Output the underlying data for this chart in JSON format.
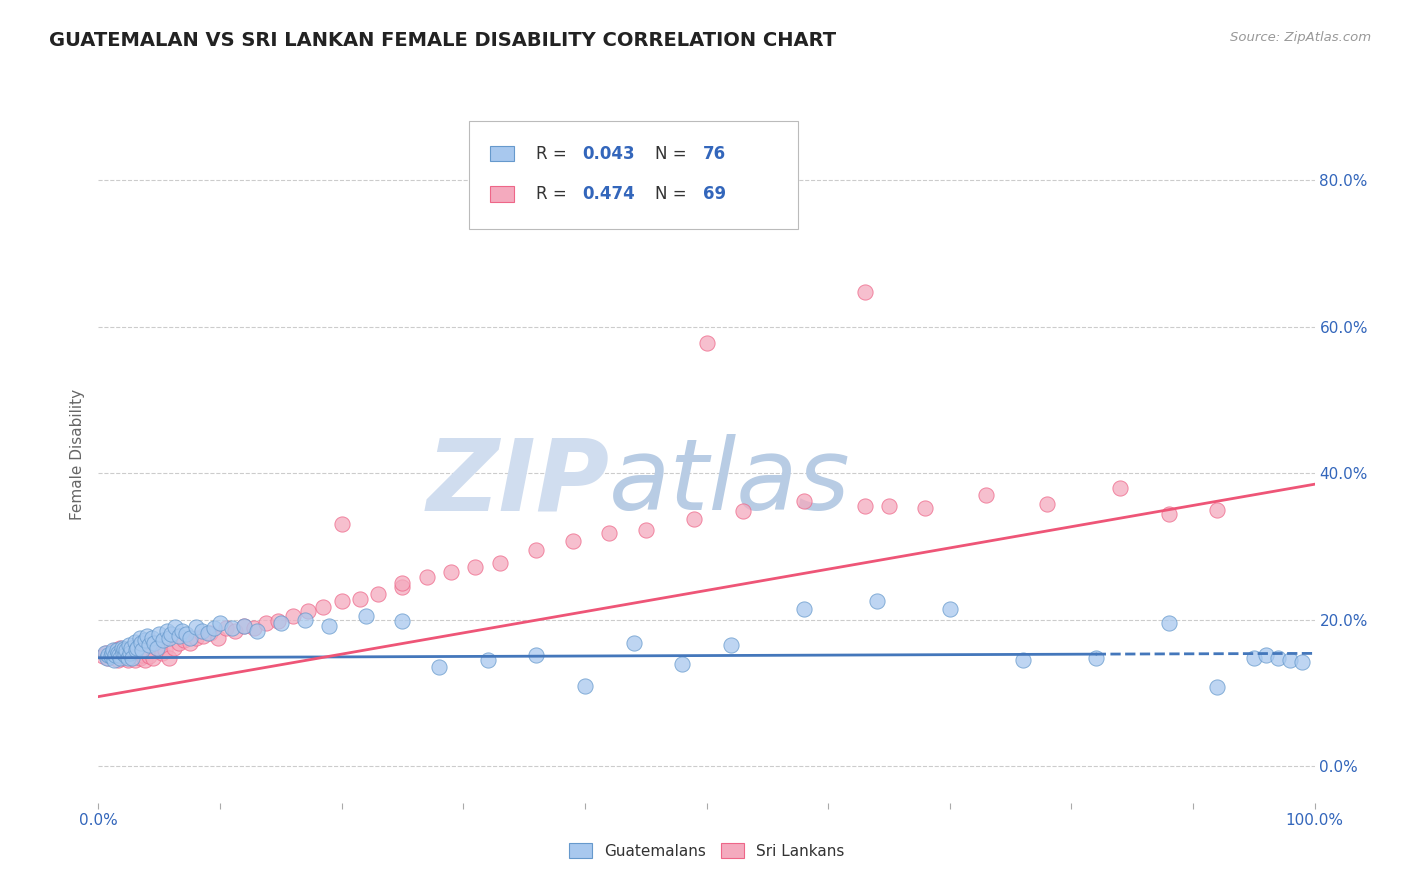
{
  "title": "GUATEMALAN VS SRI LANKAN FEMALE DISABILITY CORRELATION CHART",
  "source_text": "Source: ZipAtlas.com",
  "ylabel": "Female Disability",
  "xlim": [
    0.0,
    1.0
  ],
  "ylim": [
    -0.05,
    0.9
  ],
  "x_ticks": [
    0.0,
    0.1,
    0.2,
    0.3,
    0.4,
    0.5,
    0.6,
    0.7,
    0.8,
    0.9,
    1.0
  ],
  "x_tick_labels": [
    "0.0%",
    "",
    "",
    "",
    "",
    "",
    "",
    "",
    "",
    "",
    "100.0%"
  ],
  "y_tick_labels_right": [
    "0.0%",
    "20.0%",
    "40.0%",
    "60.0%",
    "80.0%"
  ],
  "y_ticks_right": [
    0.0,
    0.2,
    0.4,
    0.6,
    0.8
  ],
  "guatemalan_R": 0.043,
  "guatemalan_N": 76,
  "srilanka_R": 0.474,
  "srilanka_N": 69,
  "guatemalan_color": "#A8C8EE",
  "srilanka_color": "#F4AABE",
  "guatemalan_edge_color": "#6699CC",
  "srilanka_edge_color": "#EE6688",
  "guatemalan_line_color": "#4477BB",
  "srilanka_line_color": "#EE5577",
  "guatemalan_trend_start_x": 0.0,
  "guatemalan_trend_start_y": 0.148,
  "guatemalan_trend_end_x": 0.82,
  "guatemalan_trend_end_y": 0.153,
  "guatemalan_trend_dash_start_x": 0.82,
  "guatemalan_trend_dash_start_y": 0.153,
  "guatemalan_trend_dash_end_x": 1.0,
  "guatemalan_trend_dash_end_y": 0.154,
  "srilanka_trend_start_x": 0.0,
  "srilanka_trend_start_y": 0.095,
  "srilanka_trend_end_x": 1.0,
  "srilanka_trend_end_y": 0.385,
  "watermark_zip": "ZIP",
  "watermark_atlas": "atlas",
  "watermark_color_zip": "#D0DDEF",
  "watermark_color_atlas": "#B8CCE4",
  "background_color": "#FFFFFF",
  "grid_color": "#CCCCCC",
  "title_color": "#222222",
  "guatemalan_x": [
    0.005,
    0.007,
    0.008,
    0.01,
    0.011,
    0.012,
    0.013,
    0.014,
    0.015,
    0.016,
    0.017,
    0.018,
    0.019,
    0.02,
    0.021,
    0.022,
    0.023,
    0.024,
    0.025,
    0.026,
    0.027,
    0.028,
    0.03,
    0.031,
    0.032,
    0.034,
    0.035,
    0.036,
    0.038,
    0.04,
    0.042,
    0.044,
    0.046,
    0.048,
    0.05,
    0.053,
    0.056,
    0.058,
    0.06,
    0.063,
    0.066,
    0.069,
    0.072,
    0.075,
    0.08,
    0.085,
    0.09,
    0.095,
    0.1,
    0.11,
    0.12,
    0.13,
    0.15,
    0.17,
    0.19,
    0.22,
    0.25,
    0.28,
    0.32,
    0.36,
    0.4,
    0.44,
    0.48,
    0.52,
    0.58,
    0.64,
    0.7,
    0.76,
    0.82,
    0.88,
    0.92,
    0.95,
    0.96,
    0.97,
    0.98,
    0.99
  ],
  "guatemalan_y": [
    0.155,
    0.148,
    0.152,
    0.15,
    0.155,
    0.158,
    0.145,
    0.152,
    0.158,
    0.155,
    0.152,
    0.148,
    0.162,
    0.155,
    0.16,
    0.152,
    0.158,
    0.148,
    0.165,
    0.155,
    0.162,
    0.148,
    0.17,
    0.158,
    0.162,
    0.175,
    0.168,
    0.158,
    0.172,
    0.178,
    0.165,
    0.175,
    0.168,
    0.162,
    0.18,
    0.172,
    0.185,
    0.175,
    0.18,
    0.19,
    0.178,
    0.185,
    0.18,
    0.175,
    0.19,
    0.185,
    0.182,
    0.188,
    0.195,
    0.188,
    0.192,
    0.185,
    0.195,
    0.2,
    0.192,
    0.205,
    0.198,
    0.135,
    0.145,
    0.152,
    0.11,
    0.168,
    0.14,
    0.165,
    0.215,
    0.225,
    0.215,
    0.145,
    0.148,
    0.195,
    0.108,
    0.148,
    0.152,
    0.148,
    0.145,
    0.142
  ],
  "srilanka_x": [
    0.004,
    0.006,
    0.008,
    0.01,
    0.012,
    0.014,
    0.016,
    0.018,
    0.02,
    0.022,
    0.024,
    0.026,
    0.028,
    0.03,
    0.032,
    0.034,
    0.036,
    0.038,
    0.04,
    0.042,
    0.045,
    0.048,
    0.052,
    0.055,
    0.058,
    0.062,
    0.066,
    0.07,
    0.075,
    0.08,
    0.086,
    0.092,
    0.098,
    0.105,
    0.112,
    0.12,
    0.128,
    0.138,
    0.148,
    0.16,
    0.172,
    0.185,
    0.2,
    0.215,
    0.23,
    0.25,
    0.27,
    0.29,
    0.31,
    0.33,
    0.36,
    0.39,
    0.42,
    0.45,
    0.49,
    0.53,
    0.58,
    0.63,
    0.68,
    0.73,
    0.78,
    0.84,
    0.88,
    0.92,
    0.63,
    0.65,
    0.5,
    0.2,
    0.25
  ],
  "srilanka_y": [
    0.15,
    0.155,
    0.148,
    0.152,
    0.155,
    0.158,
    0.145,
    0.162,
    0.148,
    0.158,
    0.145,
    0.152,
    0.155,
    0.145,
    0.158,
    0.148,
    0.152,
    0.145,
    0.158,
    0.15,
    0.148,
    0.162,
    0.155,
    0.158,
    0.148,
    0.162,
    0.168,
    0.172,
    0.168,
    0.175,
    0.178,
    0.182,
    0.175,
    0.188,
    0.185,
    0.192,
    0.188,
    0.195,
    0.198,
    0.205,
    0.212,
    0.218,
    0.225,
    0.228,
    0.235,
    0.245,
    0.258,
    0.265,
    0.272,
    0.278,
    0.295,
    0.308,
    0.318,
    0.322,
    0.338,
    0.348,
    0.362,
    0.355,
    0.352,
    0.37,
    0.358,
    0.38,
    0.345,
    0.35,
    0.648,
    0.355,
    0.578,
    0.33,
    0.25
  ]
}
